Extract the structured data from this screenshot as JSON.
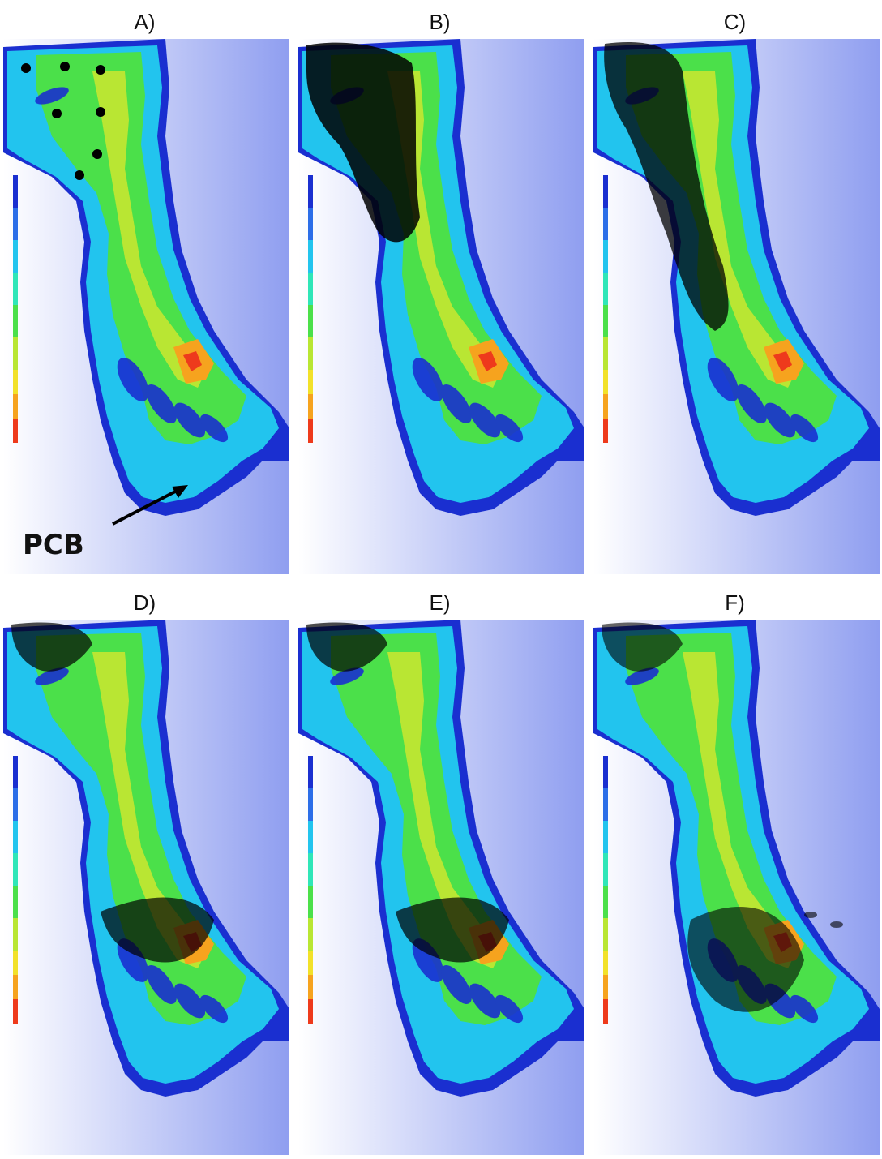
{
  "panels": [
    {
      "id": "A",
      "label": "A)",
      "annotation": "PCB"
    },
    {
      "id": "B",
      "label": "B)"
    },
    {
      "id": "C",
      "label": "C)"
    },
    {
      "id": "D",
      "label": "D)"
    },
    {
      "id": "E",
      "label": "E)"
    },
    {
      "id": "F",
      "label": "F)"
    }
  ],
  "colorscale": [
    "#1a2fd0",
    "#2c6ee8",
    "#22c4ee",
    "#2fe6b8",
    "#4be04a",
    "#b9e633",
    "#f2e12a",
    "#f6a31e",
    "#ee3a1c"
  ],
  "background_gradient": [
    "#ffffff",
    "#8f9ef0"
  ],
  "particle_color": "#000000"
}
